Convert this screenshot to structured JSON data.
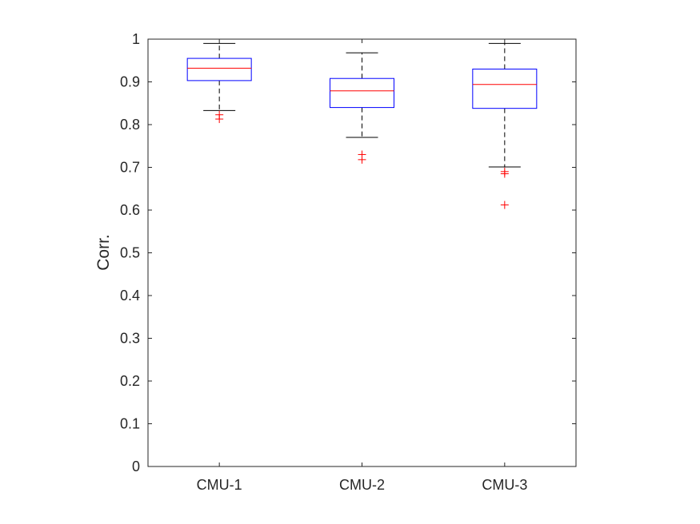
{
  "chart_data": {
    "type": "box",
    "title": "",
    "xlabel": "",
    "ylabel": "Corr.",
    "ylim": [
      0,
      1
    ],
    "yticks": [
      0,
      0.1,
      0.2,
      0.3,
      0.4,
      0.5,
      0.6,
      0.7,
      0.8,
      0.9,
      1
    ],
    "ytick_labels": [
      "0",
      "0.1",
      "0.2",
      "0.3",
      "0.4",
      "0.5",
      "0.6",
      "0.7",
      "0.8",
      "0.9",
      "1"
    ],
    "categories": [
      "CMU-1",
      "CMU-2",
      "CMU-3"
    ],
    "boxes": [
      {
        "category": "CMU-1",
        "whisker_low": 0.833,
        "q1": 0.903,
        "median": 0.932,
        "q3": 0.955,
        "whisker_high": 0.99,
        "outliers": [
          0.823,
          0.813
        ]
      },
      {
        "category": "CMU-2",
        "whisker_low": 0.77,
        "q1": 0.84,
        "median": 0.879,
        "q3": 0.908,
        "whisker_high": 0.968,
        "outliers": [
          0.73,
          0.718
        ]
      },
      {
        "category": "CMU-3",
        "whisker_low": 0.701,
        "q1": 0.838,
        "median": 0.894,
        "q3": 0.93,
        "whisker_high": 0.99,
        "outliers": [
          0.69,
          0.685,
          0.612
        ]
      }
    ],
    "grid": false,
    "colors": {
      "box": "#0000ff",
      "median": "#ff0000",
      "whisker": "#000000",
      "outlier": "#ff0000",
      "axis": "#262626"
    }
  }
}
